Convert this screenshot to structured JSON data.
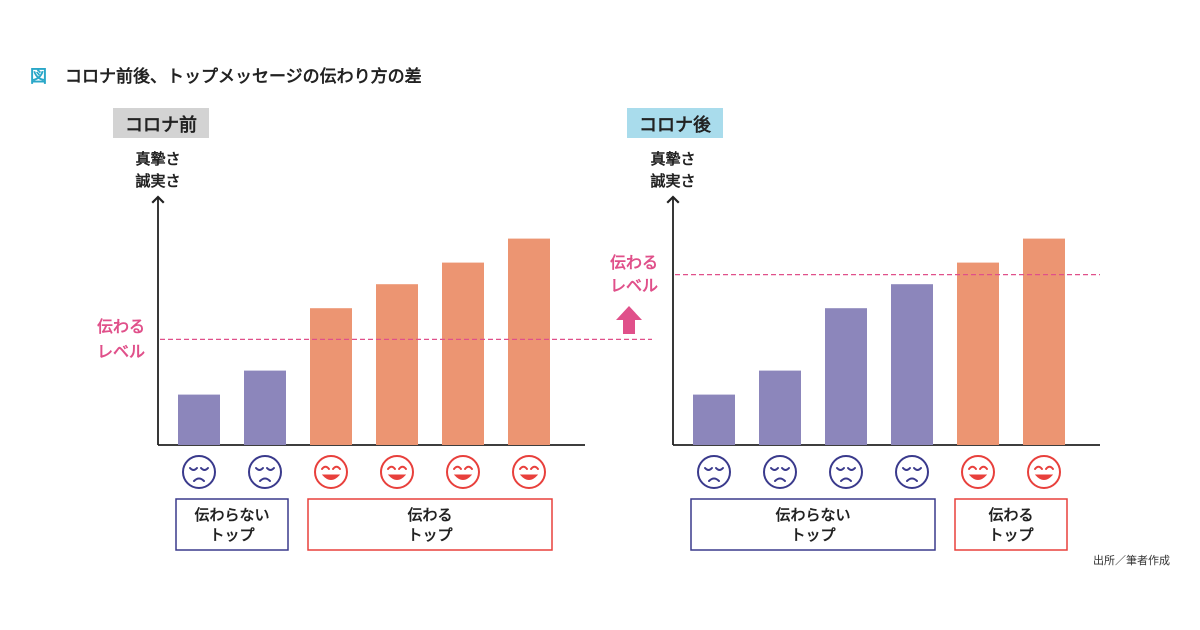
{
  "figure": {
    "prefix": "図",
    "title": "コロナ前後、トップメッセージの伝わり方の差"
  },
  "source_note": "出所／筆者作成",
  "colors": {
    "blue_bar": "#8c86bb",
    "orange_bar": "#ec9572",
    "threshold": "#e0508a",
    "blue_face": "#3a3a8c",
    "red_face": "#e8403c",
    "label_pre_bg": "#d3d3d3",
    "label_post_bg": "#a9dcec"
  },
  "chart_data": [
    {
      "type": "bar",
      "panel_label": "コロナ前",
      "ylabel": [
        "真摯さ",
        "誠実さ"
      ],
      "values": [
        21,
        31,
        57,
        67,
        76,
        86
      ],
      "ylim": [
        0,
        100
      ],
      "threshold": {
        "value": 44,
        "label": [
          "伝わる",
          "レベル"
        ]
      },
      "faces": [
        "sad",
        "sad",
        "happy",
        "happy",
        "happy",
        "happy"
      ],
      "groups": [
        {
          "label": [
            "伝わらない",
            "トップ"
          ],
          "from": 0,
          "to": 1,
          "tone": "blue"
        },
        {
          "label": [
            "伝わる",
            "トップ"
          ],
          "from": 2,
          "to": 5,
          "tone": "red"
        }
      ]
    },
    {
      "type": "bar",
      "panel_label": "コロナ後",
      "ylabel": [
        "真摯さ",
        "誠実さ"
      ],
      "values": [
        21,
        31,
        57,
        67,
        76,
        86
      ],
      "ylim": [
        0,
        100
      ],
      "threshold": {
        "value": 71,
        "label": [
          "伝わる",
          "レベル"
        ]
      },
      "faces": [
        "sad",
        "sad",
        "sad",
        "sad",
        "happy",
        "happy"
      ],
      "groups": [
        {
          "label": [
            "伝わらない",
            "トップ"
          ],
          "from": 0,
          "to": 3,
          "tone": "blue"
        },
        {
          "label": [
            "伝わる",
            "トップ"
          ],
          "from": 4,
          "to": 5,
          "tone": "red"
        }
      ]
    }
  ]
}
